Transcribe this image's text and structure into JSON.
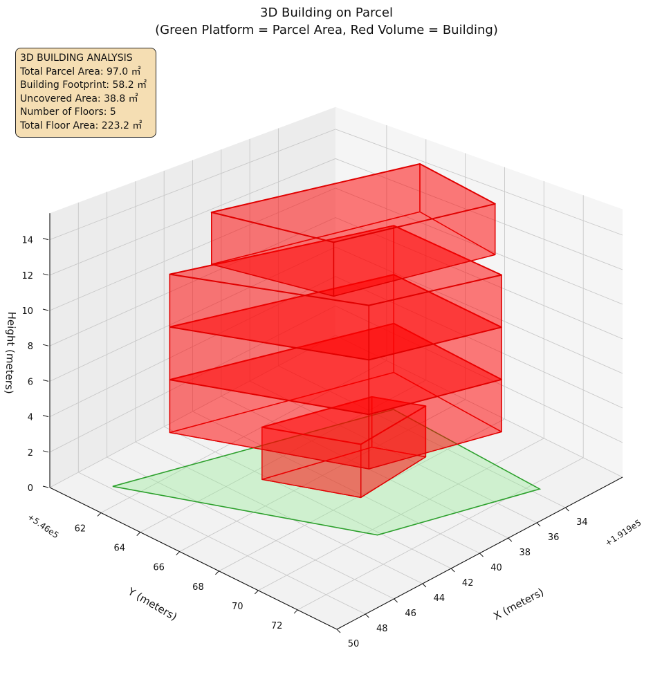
{
  "chart_data": {
    "type": "3d-polygon",
    "title": [
      "3D Building on Parcel",
      "(Green Platform = Parcel Area, Red Volume = Building)"
    ],
    "xlabel": "X (meters)",
    "ylabel": "Y (meters)",
    "zlabel": "Height (meters)",
    "x_offset_text": "+1.919e5",
    "y_offset_text": "+5.46e5",
    "xlim": [
      30,
      50
    ],
    "ylim": [
      59.4,
      74
    ],
    "zlim": [
      0,
      15.5
    ],
    "xticks": [
      34,
      36,
      38,
      40,
      42,
      44,
      46,
      48,
      50
    ],
    "yticks": [
      62,
      64,
      66,
      68,
      70,
      72
    ],
    "zticks": [
      0,
      2,
      4,
      6,
      8,
      10,
      12,
      14
    ],
    "grid": true,
    "parcel": {
      "name": "Parcel Area",
      "color": "#2ca02c",
      "fill": "#90ee90",
      "z": 0,
      "polygon": [
        [
          47.8,
          61.0
        ],
        [
          33.1,
          64.6
        ],
        [
          33.6,
          72.4
        ],
        [
          42.2,
          70.4
        ]
      ]
    },
    "building": {
      "name": "Building",
      "color": "#e00000",
      "floors": [
        {
          "floor": 1,
          "z_bottom": 0,
          "z_top": 3,
          "footprint": [
            [
              42.3,
              64.6
            ],
            [
              36.4,
              65.9
            ],
            [
              35.25,
              67.8
            ],
            [
              40.2,
              68.1
            ]
          ]
        },
        {
          "floor": 2,
          "z_bottom": 3,
          "z_top": 6,
          "footprint": [
            [
              45.8,
              62.45
            ],
            [
              33.9,
              65.2
            ],
            [
              34.55,
              71.15
            ],
            [
              41.7,
              69.6
            ]
          ]
        },
        {
          "floor": 3,
          "z_bottom": 6,
          "z_top": 9,
          "footprint": [
            [
              45.8,
              62.45
            ],
            [
              33.9,
              65.2
            ],
            [
              34.55,
              71.15
            ],
            [
              41.7,
              69.6
            ]
          ]
        },
        {
          "floor": 4,
          "z_bottom": 9,
          "z_top": 12,
          "footprint": [
            [
              45.8,
              62.45
            ],
            [
              33.9,
              65.2
            ],
            [
              34.55,
              71.15
            ],
            [
              41.7,
              69.6
            ]
          ]
        },
        {
          "floor": 5,
          "z_bottom": 12,
          "z_top": 15,
          "footprint": [
            [
              43.5,
              62.9
            ],
            [
              31.8,
              65.0
            ],
            [
              33.0,
              69.7
            ],
            [
              42.1,
              68.1
            ]
          ]
        }
      ]
    }
  },
  "info_box": {
    "heading": "3D BUILDING ANALYSIS",
    "lines": [
      "Total Parcel Area: 97.0 ㎡",
      "Building Footprint: 58.2 ㎡",
      "Uncovered Area: 38.8 ㎡",
      "Number of Floors: 5",
      "Total Floor Area: 223.2 ㎡"
    ]
  }
}
